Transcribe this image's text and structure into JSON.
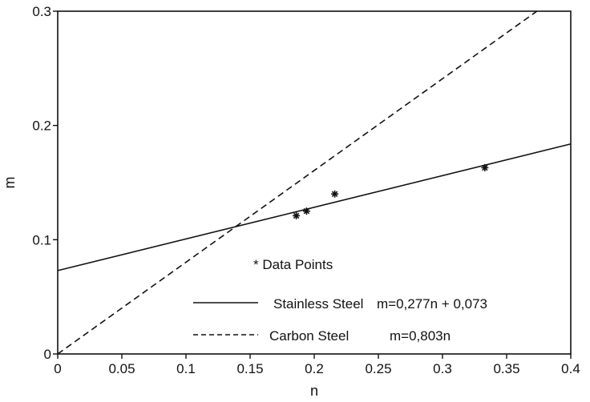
{
  "chart_data": {
    "type": "scatter",
    "xlabel": "n",
    "ylabel": "m",
    "xlim": [
      0,
      0.4
    ],
    "ylim": [
      0,
      0.3
    ],
    "x_ticks": [
      "0",
      "0.05",
      "0.1",
      "0.15",
      "0.2",
      "0.25",
      "0.3",
      "0.35",
      "0.4"
    ],
    "y_ticks": [
      "0",
      "0.1",
      "0.2",
      "0.3"
    ],
    "grid": false,
    "series": [
      {
        "name": "Data Points",
        "kind": "scatter",
        "marker": "*",
        "points": [
          {
            "x": 0.186,
            "y": 0.121
          },
          {
            "x": 0.194,
            "y": 0.125
          },
          {
            "x": 0.216,
            "y": 0.14
          },
          {
            "x": 0.333,
            "y": 0.163
          }
        ]
      },
      {
        "name": "Stainless Steel",
        "kind": "line",
        "style": "solid",
        "equation": "m=0,277n + 0,073",
        "slope": 0.277,
        "intercept": 0.073
      },
      {
        "name": "Carbon Steel",
        "kind": "line",
        "style": "dashed",
        "equation": "m=0,803n",
        "slope": 0.803,
        "intercept": 0
      }
    ],
    "legend": {
      "placement": "bottom-center",
      "marker_label": "* Data Points"
    }
  }
}
